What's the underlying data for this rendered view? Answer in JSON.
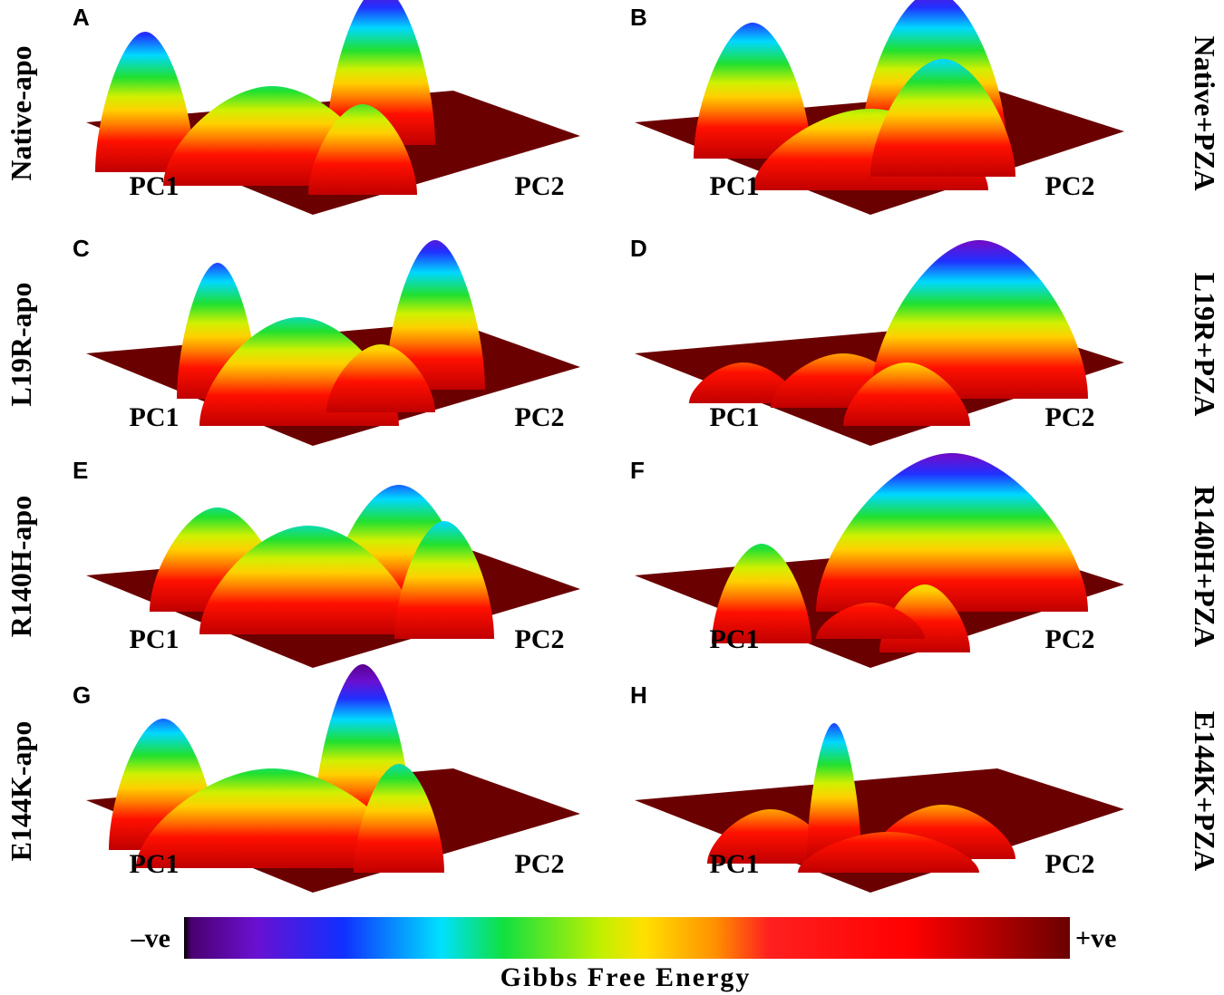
{
  "panels": [
    {
      "letter": "A",
      "label": "Native-apo",
      "x_axis": "PC1",
      "y_axis": "PC2"
    },
    {
      "letter": "B",
      "label": "Native+PZA",
      "x_axis": "PC1",
      "y_axis": "PC2"
    },
    {
      "letter": "C",
      "label": "L19R-apo",
      "x_axis": "PC1",
      "y_axis": "PC2"
    },
    {
      "letter": "D",
      "label": "L19R+PZA",
      "x_axis": "PC1",
      "y_axis": "PC2"
    },
    {
      "letter": "E",
      "label": "R140H-apo",
      "x_axis": "PC1",
      "y_axis": "PC2"
    },
    {
      "letter": "F",
      "label": "R140H+PZA",
      "x_axis": "PC1",
      "y_axis": "PC2"
    },
    {
      "letter": "G",
      "label": "E144K-apo",
      "x_axis": "PC1",
      "y_axis": "PC2"
    },
    {
      "letter": "H",
      "label": "E144K+PZA",
      "x_axis": "PC1",
      "y_axis": "PC2"
    }
  ],
  "colorbar": {
    "low": "–ve",
    "high": "+ve",
    "title": "Gibbs Free Energy"
  }
}
